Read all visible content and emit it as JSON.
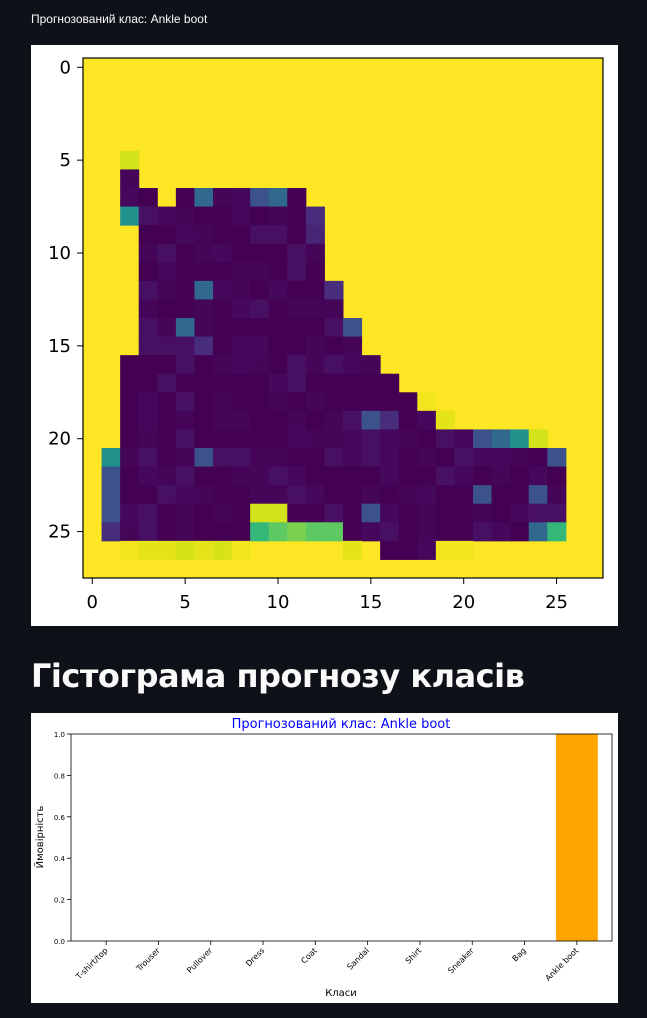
{
  "caption": "Прогнозований клас: Ankle boot",
  "heading": "Гістограма прогнозу класів",
  "image_plot": {
    "xticks": [
      "0",
      "5",
      "10",
      "15",
      "20",
      "25"
    ],
    "yticks": [
      "0",
      "5",
      "10",
      "15",
      "20",
      "25"
    ],
    "background_color": "#fde725",
    "shape_color": "#440154"
  },
  "chart_data": {
    "type": "bar",
    "title": "Прогнозований клас: Ankle boot",
    "xlabel": "Класи",
    "ylabel": "Ймовірність",
    "categories": [
      "T-shirt/top",
      "Trouser",
      "Pullover",
      "Dress",
      "Coat",
      "Sandal",
      "Shirt",
      "Sneaker",
      "Bag",
      "Ankle boot"
    ],
    "values": [
      0,
      0,
      0,
      0,
      0,
      0,
      0,
      0,
      0,
      1.0
    ],
    "yticks": [
      "0.0",
      "0.2",
      "0.4",
      "0.6",
      "0.8",
      "1.0"
    ],
    "ylim": [
      0,
      1.0
    ],
    "bar_color": "#ffa500",
    "title_color": "#0000ff",
    "grid": false
  }
}
